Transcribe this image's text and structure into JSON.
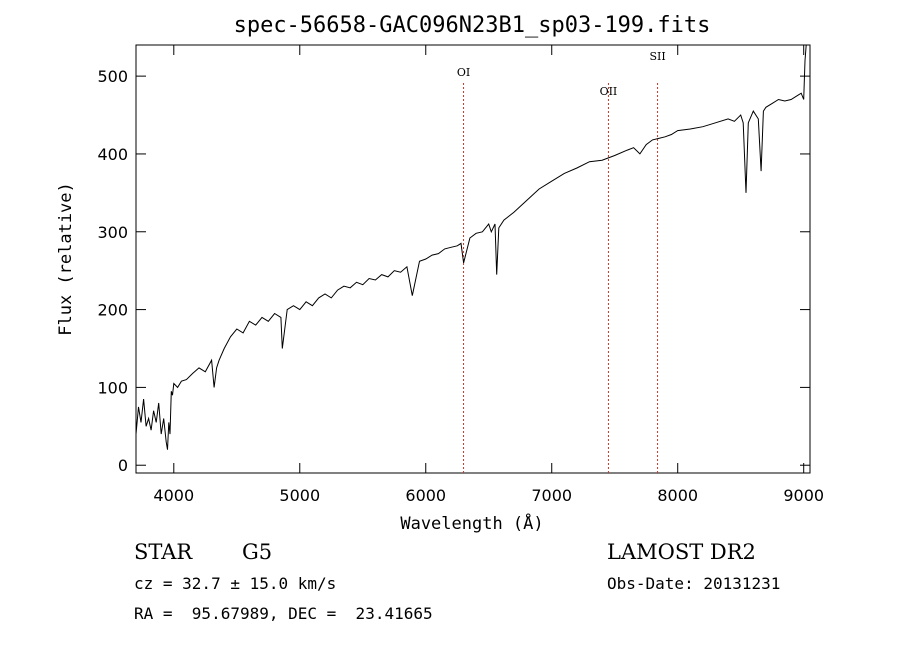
{
  "chart_data": {
    "type": "line",
    "title": "spec-56658-GAC096N23B1_sp03-199.fits",
    "xlabel": "Wavelength (Å)",
    "ylabel": "Flux (relative)",
    "xlim": [
      3700,
      9050
    ],
    "ylim": [
      -10,
      540
    ],
    "x_ticks": [
      4000,
      5000,
      6000,
      7000,
      8000,
      9000
    ],
    "y_ticks": [
      0,
      100,
      200,
      300,
      400,
      500
    ],
    "grid": false,
    "series": [
      {
        "color": "#000000",
        "x": [
          3700,
          3720,
          3740,
          3760,
          3780,
          3800,
          3820,
          3840,
          3860,
          3880,
          3900,
          3920,
          3940,
          3950,
          3960,
          3970,
          3980,
          3990,
          4000,
          4030,
          4060,
          4100,
          4150,
          4200,
          4250,
          4300,
          4320,
          4340,
          4360,
          4400,
          4450,
          4500,
          4550,
          4600,
          4650,
          4700,
          4750,
          4800,
          4850,
          4861,
          4900,
          4950,
          5000,
          5050,
          5100,
          5150,
          5200,
          5250,
          5300,
          5350,
          5400,
          5450,
          5500,
          5550,
          5600,
          5650,
          5700,
          5750,
          5800,
          5850,
          5893,
          5950,
          6000,
          6050,
          6100,
          6150,
          6200,
          6250,
          6280,
          6300,
          6350,
          6400,
          6450,
          6500,
          6520,
          6550,
          6563,
          6580,
          6620,
          6700,
          6800,
          6900,
          7000,
          7100,
          7200,
          7300,
          7400,
          7500,
          7600,
          7650,
          7700,
          7750,
          7800,
          7850,
          7900,
          7950,
          8000,
          8100,
          8200,
          8300,
          8400,
          8450,
          8500,
          8520,
          8542,
          8560,
          8600,
          8640,
          8662,
          8680,
          8700,
          8750,
          8800,
          8850,
          8900,
          8950,
          8980,
          9000,
          9010,
          9020
        ],
        "y": [
          40,
          75,
          55,
          85,
          50,
          60,
          45,
          70,
          55,
          80,
          40,
          60,
          30,
          20,
          55,
          40,
          95,
          90,
          105,
          100,
          108,
          110,
          118,
          125,
          120,
          135,
          100,
          125,
          135,
          150,
          165,
          175,
          170,
          185,
          180,
          190,
          185,
          195,
          190,
          150,
          200,
          205,
          200,
          210,
          205,
          215,
          220,
          215,
          225,
          230,
          228,
          235,
          232,
          240,
          238,
          245,
          242,
          250,
          248,
          255,
          218,
          262,
          265,
          270,
          272,
          278,
          280,
          282,
          285,
          260,
          292,
          298,
          300,
          310,
          300,
          310,
          245,
          305,
          315,
          325,
          340,
          355,
          365,
          375,
          382,
          390,
          392,
          398,
          405,
          408,
          400,
          412,
          418,
          420,
          422,
          425,
          430,
          432,
          435,
          440,
          445,
          442,
          450,
          440,
          350,
          440,
          455,
          445,
          378,
          455,
          460,
          465,
          470,
          468,
          470,
          475,
          478,
          470,
          520,
          540
        ]
      }
    ],
    "annotations": [
      {
        "label": "OI",
        "wavelength": 6300
      },
      {
        "label": "OII",
        "wavelength": 7450
      },
      {
        "label": "SII",
        "wavelength": 7840
      }
    ]
  },
  "info": {
    "object_class": "STAR",
    "subclass": "G5",
    "survey": "LAMOST DR2",
    "cz": "cz = 32.7 ± 15.0 km/s",
    "obs_date": "Obs-Date: 20131231",
    "coords": "RA =  95.67989, DEC =  23.41665"
  },
  "colors": {
    "spectrum": "#000000",
    "line_marker": "#c0392b",
    "background": "#ffffff"
  }
}
